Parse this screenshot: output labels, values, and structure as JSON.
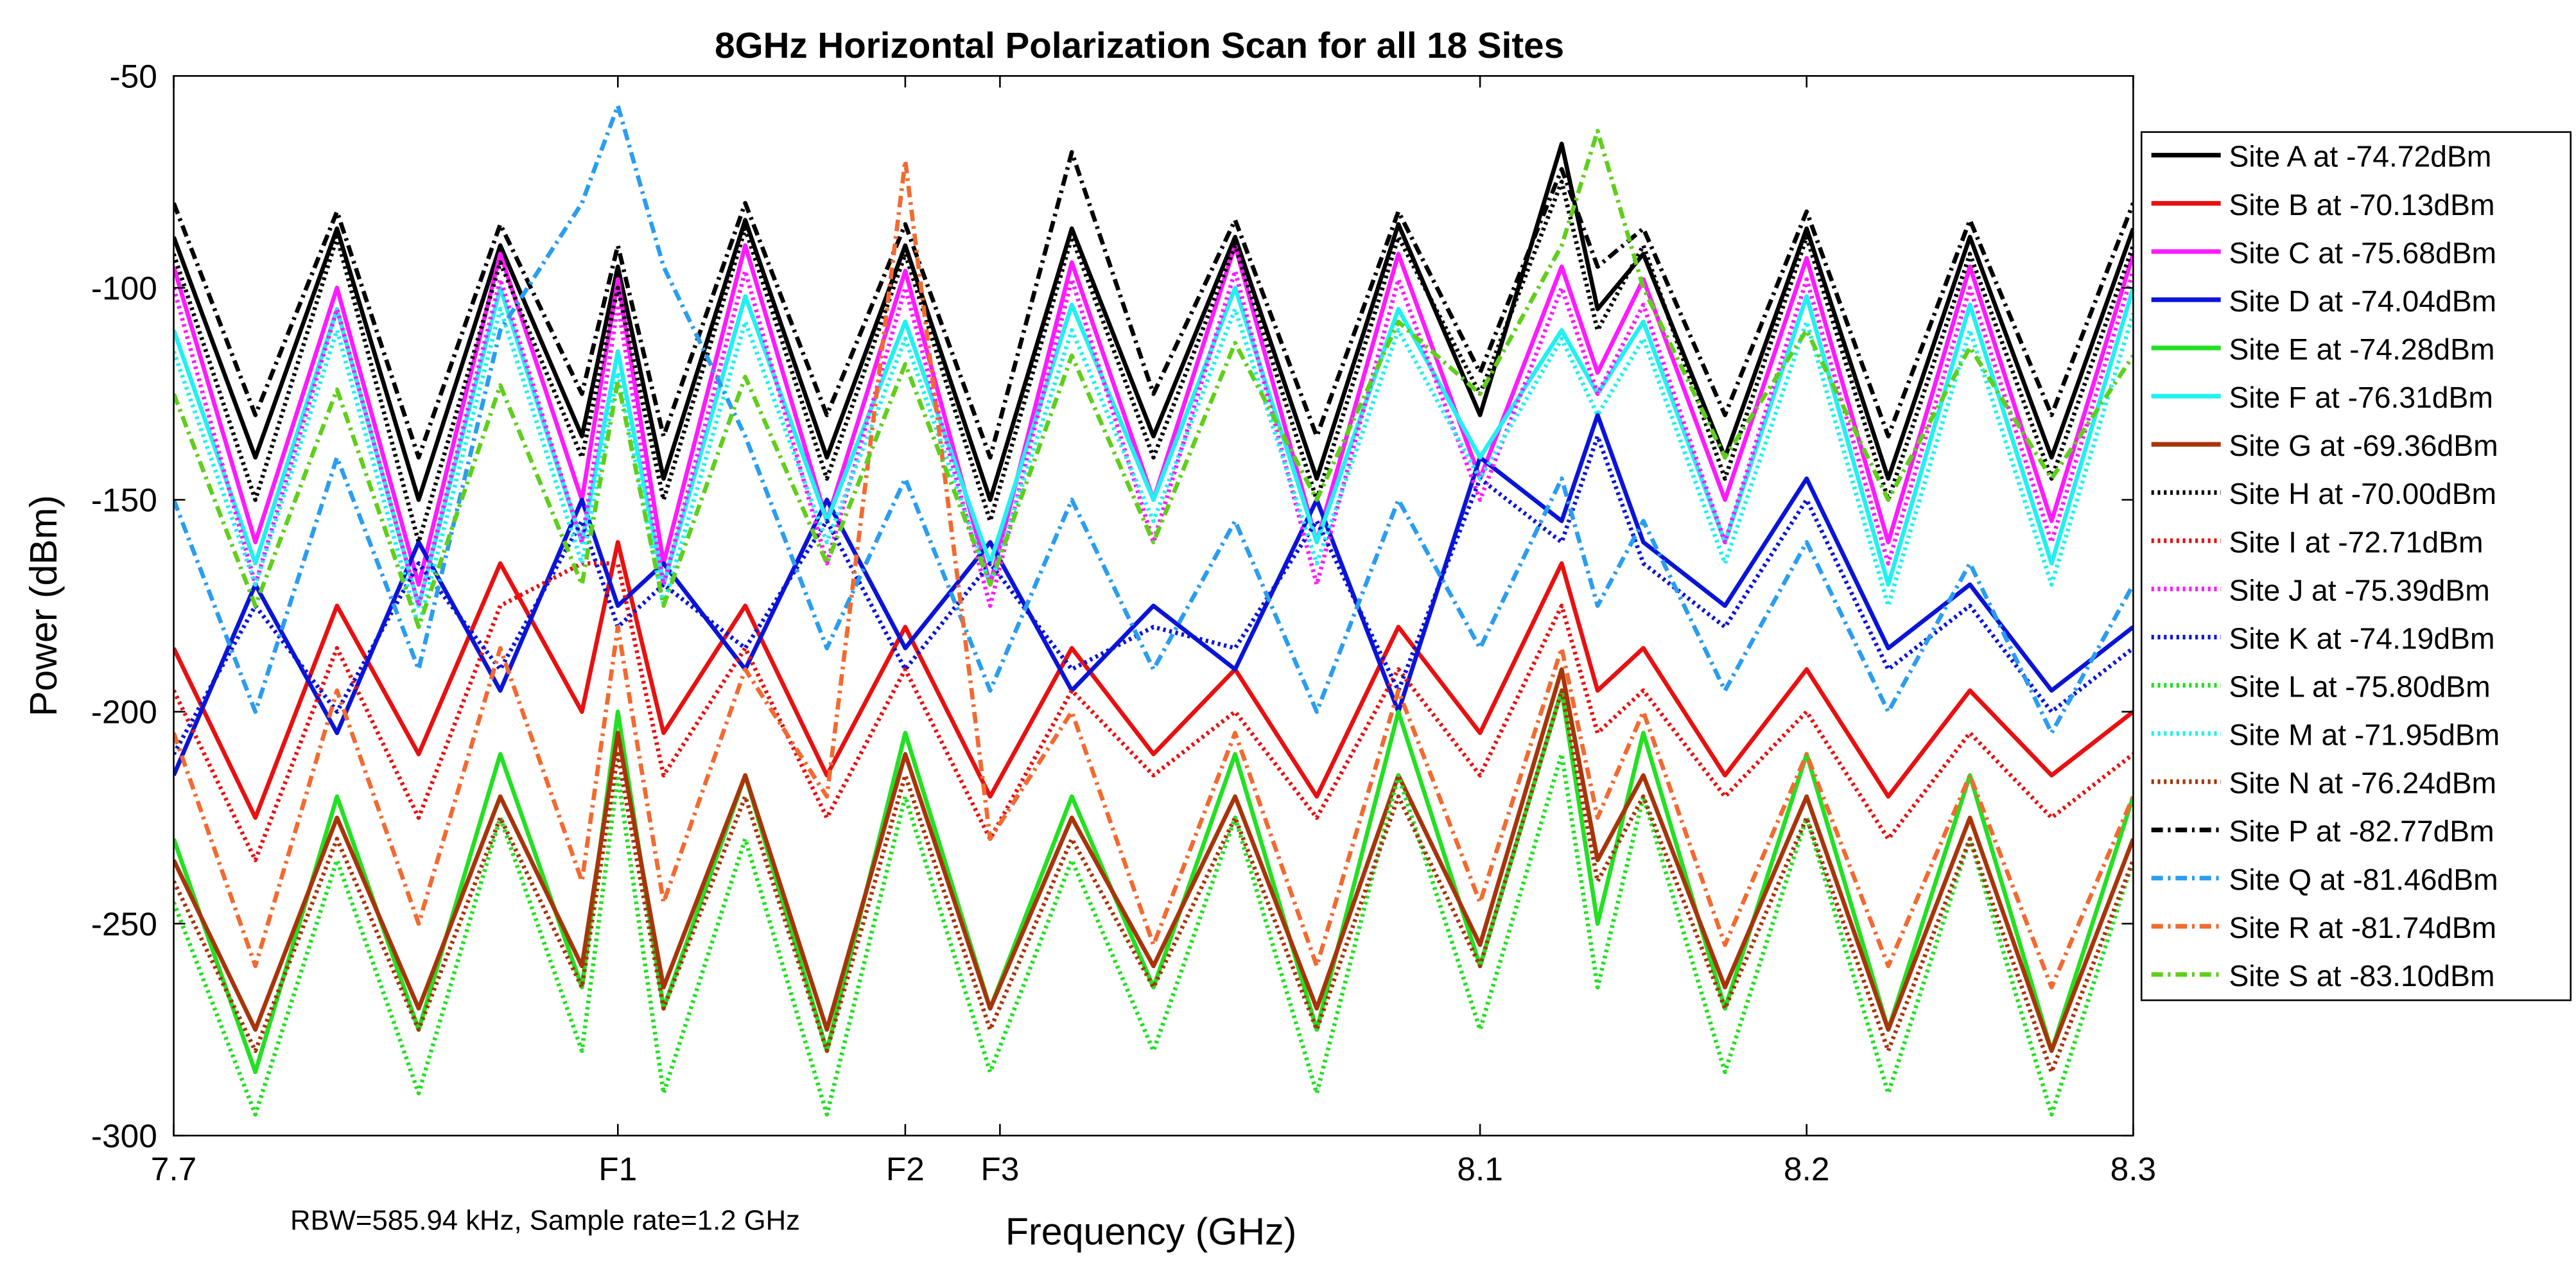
{
  "chart_data": {
    "type": "line",
    "title": "8GHz Horizontal Polarization Scan for all 18 Sites",
    "x_label": "Frequency (GHz)",
    "y_label": "Power (dBm)",
    "annotation": "RBW=585.94 kHz, Sample rate=1.2 GHz",
    "xlim": [
      7.7,
      8.3
    ],
    "ylim": [
      -300,
      -50
    ],
    "xticks": [
      7.7,
      {
        "value": 7.836,
        "label": "F1"
      },
      {
        "value": 7.924,
        "label": "F2"
      },
      {
        "value": 7.953,
        "label": "F3"
      },
      8.1,
      8.2,
      8.3
    ],
    "yticks": [
      -50,
      -100,
      -150,
      -200,
      -250,
      -300
    ],
    "grid": false,
    "legend": "outside-right",
    "x": [
      7.7,
      7.725,
      7.75,
      7.775,
      7.8,
      7.825,
      7.836,
      7.85,
      7.875,
      7.9,
      7.924,
      7.95,
      7.975,
      8.0,
      8.025,
      8.05,
      8.075,
      8.1,
      8.125,
      8.136,
      8.15,
      8.175,
      8.2,
      8.225,
      8.25,
      8.275,
      8.3
    ],
    "series": [
      {
        "name": "Site A at -74.72dBm",
        "color": "#000000",
        "line_style": "solid",
        "values": [
          -88,
          -140,
          -86,
          -150,
          -90,
          -135,
          -95,
          -145,
          -84,
          -140,
          -90,
          -150,
          -86,
          -135,
          -88,
          -145,
          -85,
          -130,
          -66,
          -105,
          -92,
          -140,
          -86,
          -145,
          -88,
          -140,
          -86
        ]
      },
      {
        "name": "Site B at -70.13dBm",
        "color": "#e81010",
        "line_style": "solid",
        "values": [
          -185,
          -225,
          -175,
          -210,
          -165,
          -200,
          -160,
          -205,
          -175,
          -215,
          -180,
          -220,
          -185,
          -210,
          -190,
          -220,
          -180,
          -205,
          -165,
          -195,
          -185,
          -215,
          -190,
          -220,
          -195,
          -215,
          -200
        ]
      },
      {
        "name": "Site C at -75.68dBm",
        "color": "#ff1aff",
        "line_style": "solid",
        "values": [
          -95,
          -160,
          -100,
          -170,
          -92,
          -150,
          -98,
          -165,
          -90,
          -155,
          -96,
          -170,
          -94,
          -150,
          -90,
          -160,
          -92,
          -145,
          -95,
          -120,
          -98,
          -150,
          -93,
          -160,
          -95,
          -155,
          -92
        ]
      },
      {
        "name": "Site D at -74.04dBm",
        "color": "#0a14d8",
        "line_style": "solid",
        "values": [
          -215,
          -170,
          -205,
          -160,
          -195,
          -150,
          -175,
          -165,
          -190,
          -150,
          -185,
          -160,
          -195,
          -175,
          -190,
          -150,
          -200,
          -140,
          -155,
          -130,
          -160,
          -175,
          -145,
          -185,
          -170,
          -195,
          -180
        ]
      },
      {
        "name": "Site E at -74.28dBm",
        "color": "#22e022",
        "line_style": "solid",
        "values": [
          -230,
          -285,
          -220,
          -275,
          -210,
          -265,
          -200,
          -270,
          -215,
          -280,
          -205,
          -270,
          -220,
          -265,
          -210,
          -275,
          -200,
          -260,
          -195,
          -250,
          -205,
          -270,
          -210,
          -275,
          -215,
          -280,
          -220
        ]
      },
      {
        "name": "Site F at -76.31dBm",
        "color": "#22f0f0",
        "line_style": "solid",
        "values": [
          -110,
          -165,
          -105,
          -175,
          -100,
          -160,
          -115,
          -170,
          -102,
          -155,
          -108,
          -165,
          -104,
          -150,
          -100,
          -160,
          -105,
          -140,
          -110,
          -125,
          -108,
          -160,
          -102,
          -170,
          -104,
          -165,
          -100
        ]
      },
      {
        "name": "Site G at -69.36dBm",
        "color": "#a8340a",
        "line_style": "solid",
        "values": [
          -235,
          -275,
          -225,
          -270,
          -220,
          -260,
          -205,
          -265,
          -215,
          -275,
          -210,
          -270,
          -225,
          -260,
          -220,
          -270,
          -215,
          -255,
          -190,
          -235,
          -215,
          -265,
          -220,
          -275,
          -225,
          -280,
          -230
        ]
      },
      {
        "name": "Site H at -70.00dBm",
        "color": "#000000",
        "line_style": "dotted",
        "values": [
          -92,
          -150,
          -88,
          -160,
          -94,
          -140,
          -100,
          -150,
          -86,
          -145,
          -92,
          -155,
          -88,
          -140,
          -90,
          -150,
          -88,
          -125,
          -75,
          -110,
          -90,
          -145,
          -88,
          -150,
          -92,
          -145,
          -90
        ]
      },
      {
        "name": "Site I at -72.71dBm",
        "color": "#e81010",
        "line_style": "dotted",
        "values": [
          -195,
          -235,
          -185,
          -225,
          -175,
          -165,
          -165,
          -215,
          -185,
          -225,
          -190,
          -230,
          -195,
          -215,
          -200,
          -225,
          -190,
          -215,
          -175,
          -205,
          -195,
          -220,
          -200,
          -230,
          -205,
          -225,
          -210
        ]
      },
      {
        "name": "Site J at -75.39dBm",
        "color": "#ff1aff",
        "line_style": "dotted",
        "values": [
          -100,
          -170,
          -105,
          -175,
          -98,
          -160,
          -104,
          -170,
          -96,
          -165,
          -100,
          -175,
          -98,
          -160,
          -96,
          -170,
          -98,
          -150,
          -100,
          -125,
          -104,
          -160,
          -98,
          -165,
          -100,
          -160,
          -96
        ]
      },
      {
        "name": "Site K at -74.19dBm",
        "color": "#0a14d8",
        "line_style": "dotted",
        "values": [
          -210,
          -175,
          -200,
          -165,
          -190,
          -155,
          -180,
          -170,
          -185,
          -155,
          -190,
          -165,
          -190,
          -180,
          -185,
          -155,
          -195,
          -145,
          -160,
          -135,
          -165,
          -180,
          -150,
          -190,
          -175,
          -200,
          -185
        ]
      },
      {
        "name": "Site L at -75.80dBm",
        "color": "#22e022",
        "line_style": "dotted",
        "values": [
          -245,
          -295,
          -235,
          -290,
          -225,
          -280,
          -215,
          -290,
          -230,
          -295,
          -220,
          -285,
          -235,
          -280,
          -225,
          -290,
          -215,
          -275,
          -210,
          -265,
          -220,
          -285,
          -225,
          -290,
          -230,
          -295,
          -235
        ]
      },
      {
        "name": "Site M at -71.95dBm",
        "color": "#22f0f0",
        "line_style": "dotted",
        "values": [
          -115,
          -170,
          -110,
          -180,
          -105,
          -165,
          -120,
          -175,
          -108,
          -160,
          -112,
          -170,
          -110,
          -155,
          -105,
          -165,
          -110,
          -145,
          -112,
          -130,
          -112,
          -165,
          -108,
          -175,
          -110,
          -170,
          -106
        ]
      },
      {
        "name": "Site N at -76.24dBm",
        "color": "#a8340a",
        "line_style": "dotted",
        "values": [
          -240,
          -280,
          -230,
          -275,
          -225,
          -265,
          -210,
          -270,
          -220,
          -280,
          -215,
          -275,
          -230,
          -265,
          -225,
          -275,
          -220,
          -260,
          -195,
          -240,
          -220,
          -270,
          -225,
          -280,
          -230,
          -285,
          -235
        ]
      },
      {
        "name": "Site P at -82.77dBm",
        "color": "#000000",
        "line_style": "dashdot",
        "values": [
          -80,
          -130,
          -82,
          -140,
          -85,
          -125,
          -90,
          -135,
          -80,
          -130,
          -85,
          -140,
          -68,
          -125,
          -84,
          -135,
          -82,
          -120,
          -72,
          -95,
          -86,
          -130,
          -82,
          -135,
          -84,
          -130,
          -80
        ]
      },
      {
        "name": "Site Q at -81.46dBm",
        "color": "#2a9df0",
        "line_style": "dashdot",
        "values": [
          -150,
          -200,
          -140,
          -190,
          -110,
          -80,
          -57,
          -95,
          -135,
          -185,
          -145,
          -195,
          -150,
          -190,
          -155,
          -200,
          -150,
          -185,
          -145,
          -175,
          -155,
          -195,
          -160,
          -200,
          -165,
          -205,
          -170
        ]
      },
      {
        "name": "Site R at -81.74dBm",
        "color": "#f26a30",
        "line_style": "dashdot",
        "values": [
          -205,
          -260,
          -195,
          -250,
          -185,
          -240,
          -180,
          -245,
          -190,
          -220,
          -70,
          -230,
          -200,
          -255,
          -205,
          -260,
          -195,
          -245,
          -185,
          -225,
          -200,
          -255,
          -210,
          -260,
          -215,
          -265,
          -220
        ]
      },
      {
        "name": "Site S at -83.10dBm",
        "color": "#5fcf1a",
        "line_style": "dashdot",
        "values": [
          -125,
          -175,
          -124,
          -180,
          -123,
          -170,
          -122,
          -175,
          -121,
          -165,
          -118,
          -170,
          -116,
          -160,
          -113,
          -150,
          -108,
          -125,
          -90,
          -63,
          -100,
          -140,
          -110,
          -150,
          -114,
          -145,
          -116
        ]
      }
    ]
  }
}
